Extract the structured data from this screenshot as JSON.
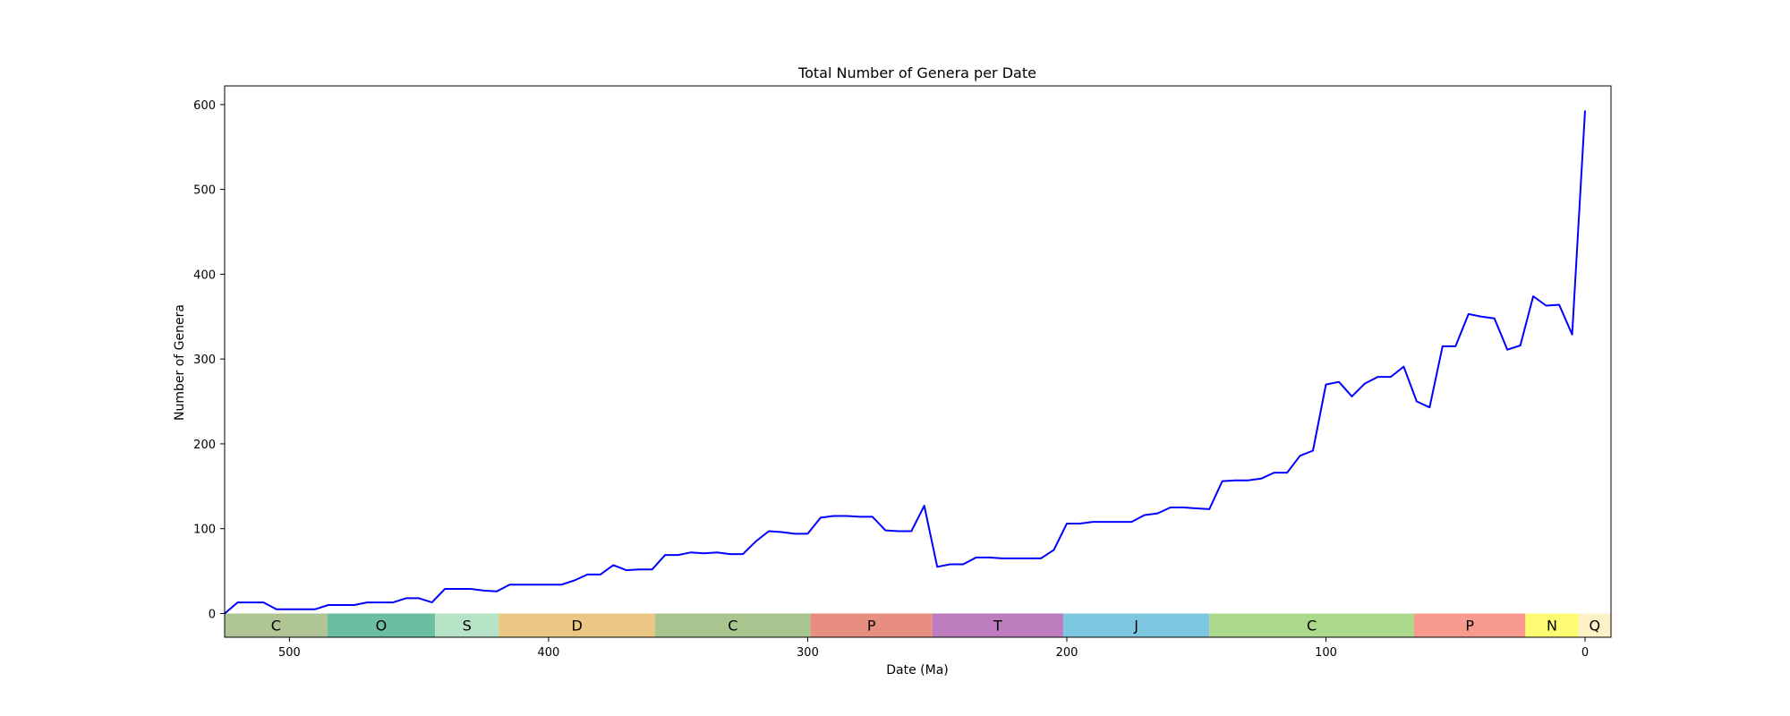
{
  "chart_data": {
    "type": "line",
    "title": "Total Number of Genera per Date",
    "xlabel": "Date (Ma)",
    "ylabel": "Number of Genera",
    "xlim": [
      525,
      -10
    ],
    "ylim": [
      -28,
      622
    ],
    "x_reversed": true,
    "xticks": [
      500,
      400,
      300,
      200,
      100,
      0
    ],
    "yticks": [
      0,
      100,
      200,
      300,
      400,
      500,
      600
    ],
    "grid": false,
    "series": [
      {
        "color": "#0000ff",
        "x": [
          525,
          520,
          515,
          510,
          505,
          500,
          495,
          490,
          485,
          480,
          475,
          470,
          465,
          460,
          455,
          450,
          445,
          440,
          435,
          430,
          425,
          420,
          415,
          410,
          405,
          400,
          395,
          390,
          385,
          380,
          375,
          370,
          365,
          360,
          355,
          350,
          345,
          340,
          335,
          330,
          325,
          320,
          315,
          310,
          305,
          300,
          295,
          290,
          285,
          280,
          275,
          270,
          265,
          260,
          255,
          250,
          245,
          240,
          235,
          230,
          225,
          220,
          215,
          210,
          205,
          200,
          195,
          190,
          185,
          180,
          175,
          170,
          165,
          160,
          155,
          150,
          145,
          140,
          135,
          130,
          125,
          120,
          115,
          110,
          105,
          100,
          95,
          90,
          85,
          80,
          75,
          70,
          65,
          60,
          55,
          50,
          45,
          40,
          35,
          30,
          25,
          20,
          15,
          10,
          5,
          0
        ],
        "values": [
          0,
          13,
          13,
          13,
          5,
          5,
          5,
          5,
          10,
          10,
          10,
          13,
          13,
          13,
          18,
          18,
          13,
          29,
          29,
          29,
          27,
          26,
          34,
          34,
          34,
          34,
          34,
          39,
          46,
          46,
          57,
          51,
          52,
          52,
          69,
          69,
          72,
          71,
          72,
          70,
          70,
          85,
          97,
          96,
          94,
          94,
          113,
          115,
          115,
          114,
          114,
          98,
          97,
          97,
          127,
          55,
          58,
          58,
          66,
          66,
          65,
          65,
          65,
          65,
          75,
          106,
          106,
          108,
          108,
          108,
          108,
          116,
          118,
          125,
          125,
          124,
          123,
          156,
          157,
          157,
          159,
          166,
          166,
          186,
          192,
          270,
          273,
          256,
          271,
          279,
          279,
          291,
          250,
          243,
          315,
          315,
          353,
          350,
          348,
          311,
          316,
          374,
          363,
          364,
          329,
          593
        ]
      }
    ],
    "periods": [
      {
        "label": "C",
        "start": 538.8,
        "end": 485.4,
        "color": "#b0c594"
      },
      {
        "label": "O",
        "start": 485.4,
        "end": 443.8,
        "color": "#6cbea0"
      },
      {
        "label": "S",
        "start": 443.8,
        "end": 419.2,
        "color": "#b6e2c6"
      },
      {
        "label": "D",
        "start": 419.2,
        "end": 358.9,
        "color": "#eac884"
      },
      {
        "label": "C",
        "start": 358.9,
        "end": 298.9,
        "color": "#a8c590"
      },
      {
        "label": "P",
        "start": 298.9,
        "end": 251.9,
        "color": "#e88e80"
      },
      {
        "label": "T",
        "start": 251.9,
        "end": 201.4,
        "color": "#bd7cbd"
      },
      {
        "label": "J",
        "start": 201.4,
        "end": 145.0,
        "color": "#7ec7e0"
      },
      {
        "label": "C",
        "start": 145.0,
        "end": 66.0,
        "color": "#acd98b"
      },
      {
        "label": "P",
        "start": 66.0,
        "end": 23.03,
        "color": "#f99a8e"
      },
      {
        "label": "N",
        "start": 23.03,
        "end": 2.58,
        "color": "#fdfb72"
      },
      {
        "label": "Q",
        "start": 2.58,
        "end": -10,
        "color": "#fdf1c7"
      }
    ]
  }
}
